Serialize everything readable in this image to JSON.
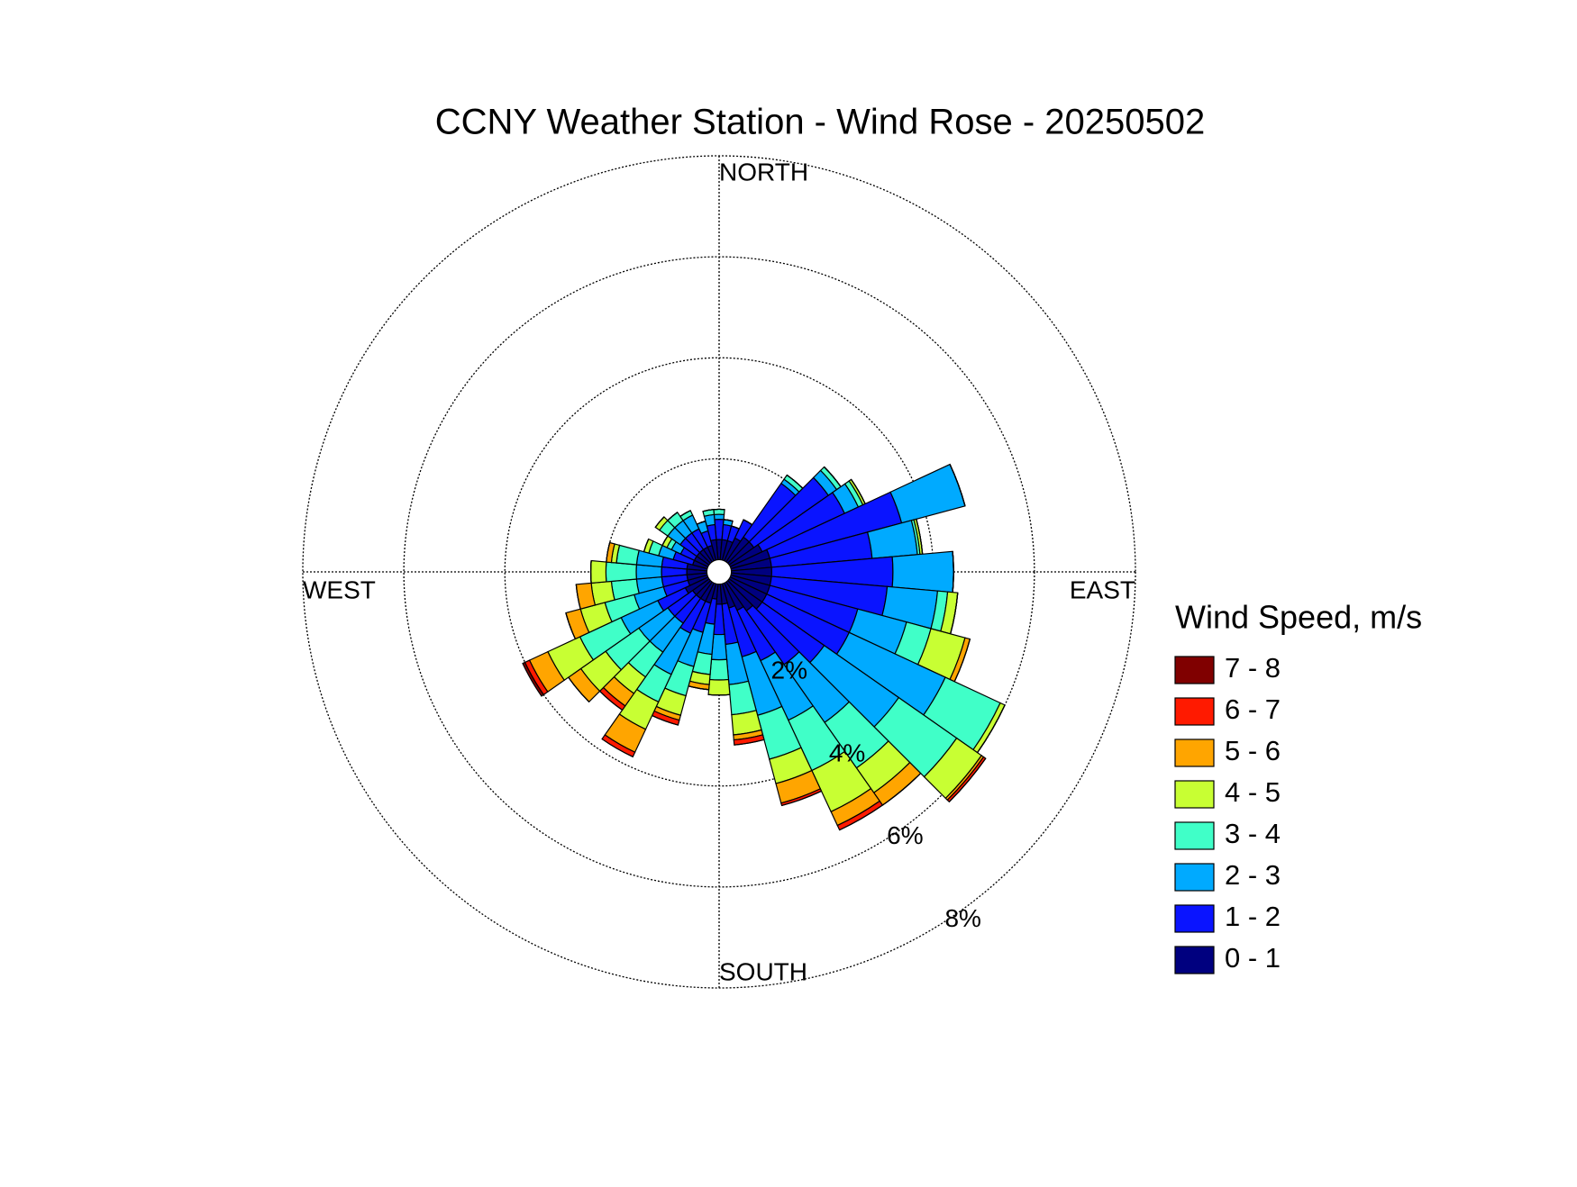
{
  "chart_data": {
    "type": "windrose",
    "title": "CCNY Weather Station - Wind Rose - 20250502",
    "legend_title": "Wind Speed, m/s",
    "directions": [
      0,
      10,
      20,
      30,
      40,
      50,
      60,
      70,
      80,
      90,
      100,
      110,
      120,
      130,
      140,
      150,
      160,
      170,
      180,
      190,
      200,
      210,
      220,
      230,
      240,
      250,
      260,
      270,
      280,
      290,
      300,
      310,
      320,
      330,
      340,
      350
    ],
    "rlim": [
      0,
      8
    ],
    "rticks": [
      {
        "value": 2,
        "label": "2%"
      },
      {
        "value": 4,
        "label": "4%"
      },
      {
        "value": 6,
        "label": "6%"
      },
      {
        "value": 8,
        "label": "8%"
      }
    ],
    "thetaticks": [
      {
        "value": 0,
        "label": "NORTH"
      },
      {
        "value": 90,
        "label": "EAST"
      },
      {
        "value": 180,
        "label": "SOUTH"
      },
      {
        "value": 270,
        "label": "WEST"
      }
    ],
    "grid": true,
    "legend": "right",
    "series": [
      {
        "name": "0 - 1",
        "color": "#00007f",
        "values": [
          0.4,
          0.4,
          0.4,
          0.5,
          0.6,
          0.6,
          0.7,
          0.8,
          0.8,
          0.8,
          0.8,
          0.8,
          0.8,
          0.8,
          0.7,
          0.6,
          0.5,
          0.4,
          0.4,
          0.3,
          0.4,
          0.4,
          0.4,
          0.4,
          0.5,
          0.4,
          0.4,
          0.4,
          0.4,
          0.3,
          0.3,
          0.3,
          0.3,
          0.3,
          0.3,
          0.4
        ]
      },
      {
        "name": "1 - 2",
        "color": "#0a14ff",
        "values": [
          0.4,
          0.3,
          0.3,
          0.4,
          1.3,
          1.8,
          1.8,
          2.7,
          2.0,
          2.4,
          2.3,
          1.8,
          1.8,
          1.5,
          1.3,
          1.1,
          1.0,
          0.8,
          0.6,
          0.5,
          0.6,
          0.7,
          0.6,
          0.6,
          0.6,
          0.5,
          0.5,
          0.5,
          0.5,
          0.4,
          0.3,
          0.4,
          0.4,
          0.4,
          0.3,
          0.3
        ]
      },
      {
        "name": "2 - 3",
        "color": "#00aaff",
        "values": [
          0.1,
          0.1,
          0,
          0,
          0.1,
          0.2,
          0.3,
          1.3,
          0.9,
          1.2,
          1.0,
          1.0,
          2.1,
          1.8,
          1.4,
          1.3,
          1.2,
          0.8,
          0.5,
          0.6,
          0.7,
          0.9,
          0.7,
          0.7,
          0.8,
          0.6,
          0.5,
          0.5,
          0.5,
          0.3,
          0.2,
          0.3,
          0.3,
          0.3,
          0.2,
          0.2
        ]
      },
      {
        "name": "3 - 4",
        "color": "#40ffc8",
        "values": [
          0.1,
          0,
          0,
          0,
          0.1,
          0.1,
          0.1,
          0,
          0.05,
          0,
          0.2,
          0.5,
          1.2,
          1.4,
          1.1,
          1.1,
          0.9,
          0.6,
          0.4,
          0.4,
          0.6,
          0.6,
          0.6,
          0.8,
          0.9,
          0.6,
          0.5,
          0.6,
          0.4,
          0.2,
          0.1,
          0.2,
          0.2,
          0.1,
          0,
          0.1
        ]
      },
      {
        "name": "4 - 5",
        "color": "#c8ff33",
        "values": [
          0,
          0,
          0,
          0,
          0,
          0,
          0.05,
          0,
          0.05,
          0,
          0.2,
          0.7,
          0.1,
          0.6,
          0.6,
          0.9,
          0.5,
          0.4,
          0.3,
          0.2,
          0.4,
          0.6,
          0.4,
          0.6,
          0.7,
          0.5,
          0.4,
          0.3,
          0.1,
          0.1,
          0.1,
          0.1,
          0,
          0,
          0,
          0
        ]
      },
      {
        "name": "5 - 6",
        "color": "#ffa500",
        "values": [
          0,
          0,
          0,
          0,
          0,
          0,
          0,
          0,
          0,
          0,
          0,
          0.1,
          0,
          0.05,
          0.3,
          0.3,
          0.4,
          0.1,
          0,
          0.1,
          0.1,
          0.5,
          0.3,
          0.3,
          0.4,
          0.3,
          0.3,
          0,
          0.1,
          0,
          0,
          0,
          0,
          0,
          0,
          0
        ]
      },
      {
        "name": "6 - 7",
        "color": "#ff1a00",
        "values": [
          0,
          0,
          0,
          0,
          0,
          0,
          0,
          0,
          0,
          0,
          0,
          0,
          0,
          0.05,
          0,
          0.1,
          0.05,
          0.1,
          0,
          0,
          0.1,
          0.1,
          0.1,
          0,
          0.1,
          0,
          0,
          0,
          0,
          0,
          0,
          0,
          0,
          0,
          0,
          0
        ]
      },
      {
        "name": "7 - 8",
        "color": "#800000",
        "values": [
          0,
          0,
          0,
          0,
          0,
          0,
          0,
          0,
          0,
          0,
          0,
          0,
          0,
          0,
          0,
          0,
          0,
          0,
          0,
          0,
          0,
          0,
          0,
          0,
          0.05,
          0,
          0,
          0,
          0,
          0,
          0,
          0,
          0,
          0,
          0,
          0
        ]
      }
    ]
  }
}
